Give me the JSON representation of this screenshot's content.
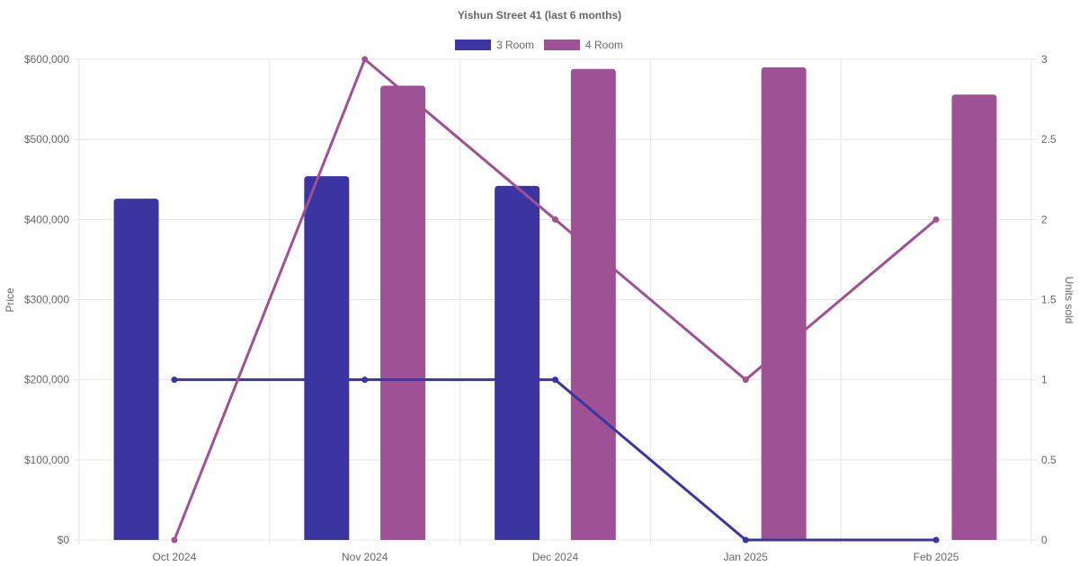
{
  "chart_data": {
    "type": "bar",
    "title": "Yishun Street 41 (last 6 months)",
    "categories": [
      "Oct 2024",
      "Nov 2024",
      "Dec 2024",
      "Jan 2025",
      "Feb 2025"
    ],
    "series": [
      {
        "name": "3 Room",
        "kind": "bar",
        "axis": "price",
        "color": "#3a35a0",
        "values": [
          426000,
          454000,
          442000,
          null,
          null
        ]
      },
      {
        "name": "4 Room",
        "kind": "bar",
        "axis": "price",
        "color": "#9e5194",
        "values": [
          null,
          567000,
          588000,
          590000,
          556000
        ]
      },
      {
        "name": "3 Room",
        "kind": "line",
        "axis": "units",
        "color": "#3a35a0",
        "values": [
          1,
          1,
          1,
          0,
          0
        ]
      },
      {
        "name": "4 Room",
        "kind": "line",
        "axis": "units",
        "color": "#9e5194",
        "values": [
          0,
          3,
          2,
          1,
          2
        ]
      }
    ],
    "legend": {
      "position": "top",
      "items": [
        {
          "label": "3 Room",
          "color": "#3a35a0"
        },
        {
          "label": "4 Room",
          "color": "#9e5194"
        }
      ]
    },
    "y_left": {
      "label": "Price",
      "ylim": [
        0,
        600000
      ],
      "ticks": [
        0,
        100000,
        200000,
        300000,
        400000,
        500000,
        600000
      ],
      "tick_labels": [
        "$0",
        "$100,000",
        "$200,000",
        "$300,000",
        "$400,000",
        "$500,000",
        "$600,000"
      ]
    },
    "y_right": {
      "label": "Units sold",
      "ylim": [
        0,
        3
      ],
      "ticks": [
        0,
        0.5,
        1,
        1.5,
        2,
        2.5,
        3
      ],
      "tick_labels": [
        "0",
        "0.5",
        "1",
        "1.5",
        "2",
        "2.5",
        "3"
      ]
    },
    "grid": true
  }
}
